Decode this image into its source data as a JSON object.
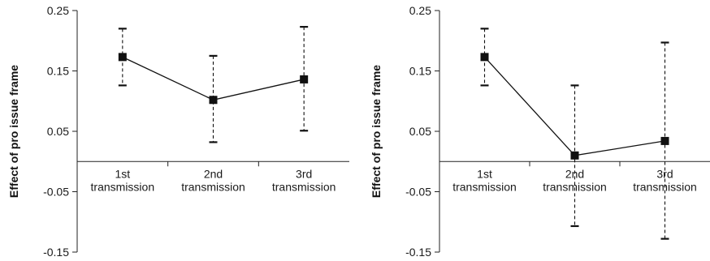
{
  "chart_data": [
    {
      "type": "line",
      "ylabel": "Effect of pro issue frame",
      "xlabel": "",
      "title": "",
      "categories": [
        [
          "1st",
          "transmission"
        ],
        [
          "2nd",
          "transmission"
        ],
        [
          "3rd",
          "transmission"
        ]
      ],
      "ylim": [
        -0.15,
        0.25
      ],
      "yticks": [
        "0.25",
        "0.15",
        "0.05",
        "-0.05",
        "-0.15"
      ],
      "ytick_values": [
        0.25,
        0.15,
        0.05,
        -0.05,
        -0.15
      ],
      "series": [
        {
          "values": [
            0.173,
            0.102,
            0.136
          ],
          "error_low": [
            0.126,
            0.032,
            0.051
          ],
          "error_high": [
            0.22,
            0.175,
            0.223
          ]
        }
      ]
    },
    {
      "type": "line",
      "ylabel": "Effect of pro issue frame",
      "xlabel": "",
      "title": "",
      "categories": [
        [
          "1st",
          "transmission"
        ],
        [
          "2nd",
          "transmission"
        ],
        [
          "3rd",
          "transmission"
        ]
      ],
      "ylim": [
        -0.15,
        0.25
      ],
      "yticks": [
        "0.25",
        "0.15",
        "0.05",
        "-0.05",
        "-0.15"
      ],
      "ytick_values": [
        0.25,
        0.15,
        0.05,
        -0.05,
        -0.15
      ],
      "series": [
        {
          "values": [
            0.173,
            0.01,
            0.034
          ],
          "error_low": [
            0.126,
            -0.107,
            -0.128
          ],
          "error_high": [
            0.22,
            0.126,
            0.197
          ]
        }
      ]
    }
  ]
}
